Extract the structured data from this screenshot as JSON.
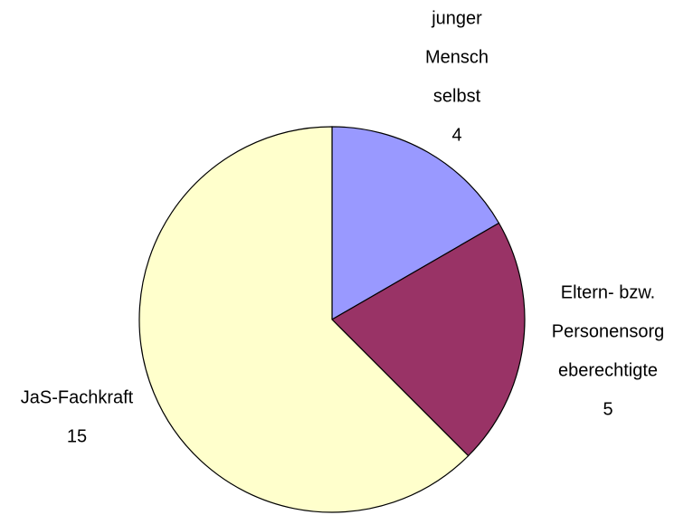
{
  "chart_data": {
    "type": "pie",
    "categories": [
      [
        "junger",
        "Mensch",
        "selbst"
      ],
      [
        "Eltern- bzw.",
        "Personensorg",
        "eberechtigte"
      ],
      [
        "JaS-Fachkraft"
      ]
    ],
    "values": [
      4,
      5,
      15
    ],
    "colors": [
      "#9999ff",
      "#993366",
      "#ffffcc"
    ]
  }
}
